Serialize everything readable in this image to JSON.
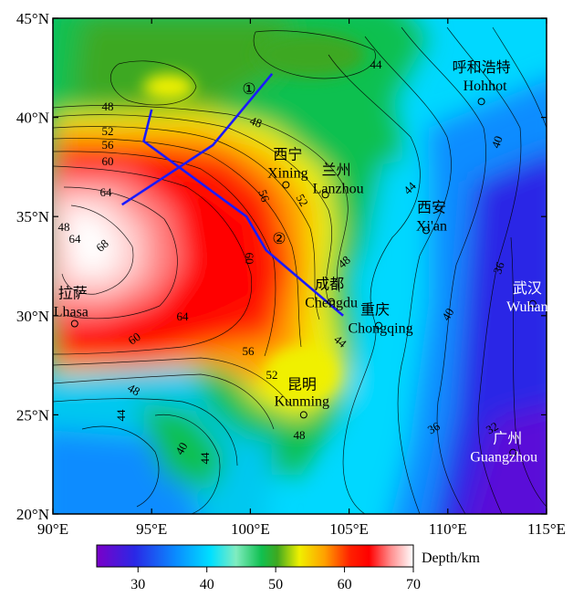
{
  "map": {
    "lon_range": [
      90,
      115
    ],
    "lat_range": [
      20,
      45
    ],
    "lon_ticks": [
      "90°E",
      "95°E",
      "100°E",
      "105°E",
      "110°E",
      "115°E"
    ],
    "lat_ticks": [
      "20°N",
      "25°N",
      "30°N",
      "35°N",
      "40°N",
      "45°N"
    ],
    "colors": {
      "c28": "#7a00c8",
      "c30": "#2a28e6",
      "c34": "#0a8cff",
      "c38": "#00d8ff",
      "c42": "#7ee8c8",
      "c46": "#10c050",
      "c50": "#3ea820",
      "c53": "#f0f000",
      "c56": "#ffb000",
      "c59": "#ff4000",
      "c62": "#ff0000",
      "c66": "#ff9090",
      "c70": "#ffffff",
      "profile": "#1a1aff"
    },
    "cities": [
      {
        "cn": "西宁",
        "en": "Xining",
        "lon": 101.8,
        "lat": 36.6
      },
      {
        "cn": "兰州",
        "en": "Lanzhou",
        "lon": 103.8,
        "lat": 36.1
      },
      {
        "cn": "西安",
        "en": "Xi'an",
        "lon": 108.9,
        "lat": 34.3
      },
      {
        "cn": "呼和浩特",
        "en": "Hohhot",
        "lon": 111.7,
        "lat": 40.8
      },
      {
        "cn": "成都",
        "en": "Chengdu",
        "lon": 104.1,
        "lat": 30.7
      },
      {
        "cn": "重庆",
        "en": "Chongqing",
        "lon": 106.5,
        "lat": 29.5
      },
      {
        "cn": "武汉",
        "en": "Wuhan",
        "lon": 114.3,
        "lat": 30.6
      },
      {
        "cn": "拉萨",
        "en": "Lhasa",
        "lon": 91.1,
        "lat": 29.6
      },
      {
        "cn": "昆明",
        "en": "Kunming",
        "lon": 102.7,
        "lat": 25.0
      },
      {
        "cn": "广州",
        "en": "Guangzhou",
        "lon": 113.3,
        "lat": 23.1
      }
    ],
    "profiles": [
      {
        "label": "①",
        "points": [
          [
            101.1,
            42.2
          ],
          [
            98.1,
            38.6
          ],
          [
            93.5,
            35.6
          ]
        ]
      },
      {
        "label": "②",
        "points": [
          [
            95.0,
            40.4
          ],
          [
            94.6,
            38.8
          ],
          [
            99.8,
            35.0
          ],
          [
            100.8,
            33.3
          ],
          [
            104.7,
            30.0
          ]
        ]
      }
    ],
    "contour_labels": [
      "48",
      "52",
      "56",
      "60",
      "64",
      "68",
      "48",
      "52",
      "56",
      "60",
      "64",
      "48",
      "44",
      "44",
      "40",
      "36",
      "40",
      "44",
      "48",
      "60",
      "64",
      "56",
      "52",
      "48",
      "44",
      "40",
      "44",
      "48",
      "36",
      "32"
    ]
  },
  "colorbar": {
    "ticks": [
      "30",
      "40",
      "50",
      "60",
      "70"
    ],
    "range": [
      24,
      70
    ],
    "unit_label": "Depth/km"
  }
}
